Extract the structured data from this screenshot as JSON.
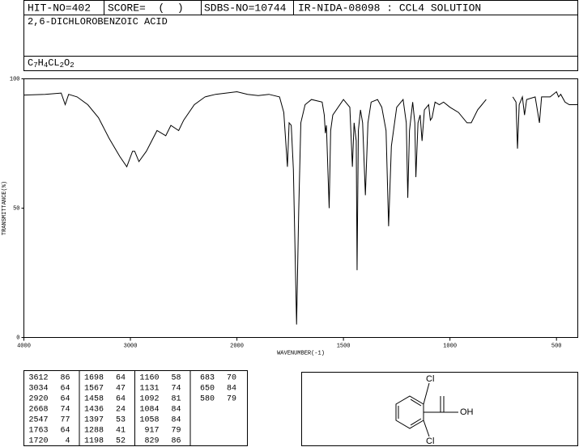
{
  "header": {
    "hit_no": "HIT-NO=402",
    "score": "SCORE=  (  )",
    "sdbs_no": "SDBS-NO=10744",
    "method": "IR-NIDA-08098 : CCL4 SOLUTION",
    "name": "2,6-DICHLOROBENZOIC ACID",
    "formula": [
      "C",
      "7",
      "H",
      "4",
      "CL",
      "2",
      "O",
      "2"
    ]
  },
  "chart_data": {
    "type": "line",
    "x_label": "WAVENUMBER(-1)",
    "y_label": "TRANSMITTANCE(%)",
    "color": "#000000",
    "xlim": [
      4000,
      400
    ],
    "x_scale_break": {
      "at": 2000,
      "factor": 2
    },
    "xticks": [
      4000,
      3000,
      2000,
      1500,
      1000,
      500
    ],
    "ylim": [
      0,
      100
    ],
    "yticks": [
      0,
      50,
      100
    ],
    "x": [
      4000,
      3800,
      3650,
      3612,
      3580,
      3500,
      3400,
      3300,
      3200,
      3100,
      3034,
      2980,
      2960,
      2920,
      2850,
      2750,
      2668,
      2620,
      2547,
      2500,
      2400,
      2300,
      2200,
      2000,
      1950,
      1900,
      1850,
      1800,
      1780,
      1763,
      1755,
      1745,
      1735,
      1720,
      1710,
      1700,
      1680,
      1650,
      1600,
      1590,
      1585,
      1580,
      1567,
      1560,
      1550,
      1500,
      1470,
      1458,
      1450,
      1440,
      1436,
      1430,
      1420,
      1410,
      1397,
      1385,
      1370,
      1340,
      1320,
      1300,
      1288,
      1275,
      1250,
      1220,
      1205,
      1198,
      1190,
      1175,
      1165,
      1160,
      1150,
      1140,
      1131,
      1120,
      1100,
      1092,
      1084,
      1070,
      1050,
      1030,
      1000,
      960,
      920,
      900,
      870,
      850,
      830,
      820,
      705,
      690,
      683,
      675,
      660,
      650,
      640,
      600,
      580,
      570,
      530,
      500,
      490,
      480,
      460,
      440,
      400
    ],
    "values": [
      93.7,
      94,
      94.5,
      90,
      94,
      93,
      90,
      85,
      77,
      70,
      66,
      72,
      72,
      68,
      72,
      80,
      78,
      82,
      80,
      84,
      90,
      93,
      94,
      95,
      94,
      93.5,
      94,
      93,
      87,
      66,
      83,
      82,
      65,
      5,
      49,
      83,
      90,
      92,
      91,
      86,
      79,
      82,
      50,
      80,
      86,
      92,
      89,
      66,
      83,
      76,
      26,
      80,
      88,
      83,
      55,
      83,
      91,
      92,
      89,
      80,
      43,
      74,
      89,
      92,
      83,
      54,
      80,
      91,
      83,
      62,
      83,
      86,
      76,
      88,
      90,
      84,
      85,
      91,
      90,
      91,
      89,
      87,
      83,
      83,
      88,
      90,
      92,
      null,
      93,
      91,
      73,
      90,
      93,
      86,
      92,
      93,
      83,
      93,
      93,
      95,
      93,
      94,
      91,
      90,
      90
    ]
  },
  "peak_table": [
    [
      [
        3612,
        86
      ],
      [
        3034,
        64
      ],
      [
        2920,
        64
      ],
      [
        2668,
        74
      ],
      [
        2547,
        77
      ],
      [
        1763,
        64
      ],
      [
        1720,
        4
      ]
    ],
    [
      [
        1698,
        64
      ],
      [
        1567,
        47
      ],
      [
        1458,
        64
      ],
      [
        1436,
        24
      ],
      [
        1397,
        53
      ],
      [
        1288,
        41
      ],
      [
        1198,
        52
      ]
    ],
    [
      [
        1160,
        58
      ],
      [
        1131,
        74
      ],
      [
        1092,
        81
      ],
      [
        1084,
        84
      ],
      [
        1058,
        84
      ],
      [
        917,
        79
      ],
      [
        829,
        86
      ]
    ],
    [
      [
        683,
        70
      ],
      [
        650,
        84
      ],
      [
        580,
        79
      ]
    ]
  ],
  "structure": {
    "labels": [
      "Cl",
      "Cl",
      "OH"
    ]
  }
}
